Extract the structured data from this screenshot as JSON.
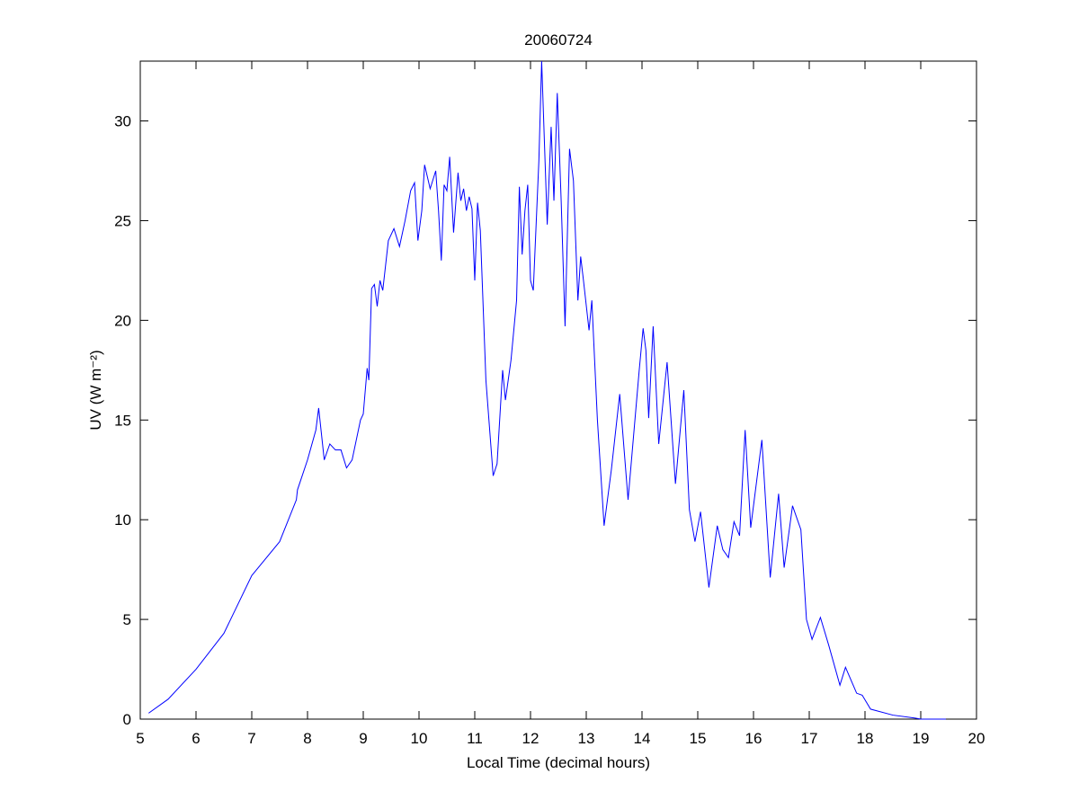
{
  "chart_data": {
    "type": "line",
    "title": "20060724",
    "xlabel": "Local Time (decimal hours)",
    "ylabel": "UV (W m⁻²)",
    "color": "#0000ff",
    "xlim": [
      5,
      20
    ],
    "xticks": [
      5,
      6,
      7,
      8,
      9,
      10,
      11,
      12,
      13,
      14,
      15,
      16,
      17,
      18,
      19,
      20
    ],
    "ylim": [
      0,
      33
    ],
    "yticks": [
      0,
      5,
      10,
      15,
      20,
      25,
      30
    ],
    "x": [
      5.15,
      5.5,
      6.0,
      6.5,
      7.0,
      7.5,
      7.8,
      7.82,
      8.0,
      8.15,
      8.2,
      8.3,
      8.4,
      8.5,
      8.6,
      8.7,
      8.8,
      8.95,
      9.0,
      9.07,
      9.1,
      9.15,
      9.2,
      9.25,
      9.3,
      9.35,
      9.45,
      9.55,
      9.65,
      9.75,
      9.85,
      9.92,
      9.98,
      10.05,
      10.1,
      10.2,
      10.3,
      10.35,
      10.4,
      10.45,
      10.5,
      10.55,
      10.62,
      10.7,
      10.75,
      10.8,
      10.85,
      10.9,
      10.95,
      11.0,
      11.05,
      11.1,
      11.2,
      11.33,
      11.4,
      11.5,
      11.55,
      11.65,
      11.75,
      11.8,
      11.85,
      11.9,
      11.95,
      12.0,
      12.05,
      12.15,
      12.2,
      12.3,
      12.37,
      12.42,
      12.48,
      12.55,
      12.62,
      12.7,
      12.77,
      12.85,
      12.9,
      12.95,
      13.05,
      13.1,
      13.2,
      13.32,
      13.45,
      13.6,
      13.75,
      13.95,
      14.02,
      14.07,
      14.12,
      14.2,
      14.3,
      14.45,
      14.6,
      14.75,
      14.85,
      14.95,
      15.05,
      15.2,
      15.35,
      15.45,
      15.55,
      15.65,
      15.75,
      15.85,
      15.95,
      16.15,
      16.3,
      16.45,
      16.55,
      16.7,
      16.85,
      16.95,
      17.05,
      17.2,
      17.35,
      17.55,
      17.65,
      17.85,
      17.95,
      18.1,
      18.5,
      18.9,
      19.0,
      19.45
    ],
    "values": [
      0.3,
      1.0,
      2.5,
      4.3,
      7.2,
      8.9,
      11.0,
      11.5,
      13.0,
      14.5,
      15.6,
      13.0,
      13.8,
      13.5,
      13.5,
      12.6,
      13.0,
      15.0,
      15.3,
      17.6,
      17.0,
      21.6,
      21.8,
      20.7,
      22.0,
      21.5,
      24.0,
      24.6,
      23.7,
      25.0,
      26.5,
      26.9,
      24.0,
      25.5,
      27.8,
      26.6,
      27.5,
      25.5,
      23.0,
      26.8,
      26.5,
      28.2,
      24.4,
      27.4,
      26.0,
      26.6,
      25.5,
      26.2,
      25.6,
      22.0,
      25.9,
      24.5,
      17.0,
      12.2,
      12.8,
      17.5,
      16.0,
      18.0,
      21.0,
      26.7,
      23.3,
      25.5,
      26.8,
      22.0,
      21.5,
      28.0,
      33.0,
      24.8,
      29.7,
      26.0,
      31.4,
      26.0,
      19.7,
      28.6,
      27.0,
      21.0,
      23.2,
      22.0,
      19.5,
      21.0,
      15.0,
      9.7,
      12.5,
      16.3,
      11.0,
      17.5,
      19.6,
      18.5,
      15.1,
      19.7,
      13.8,
      17.9,
      11.8,
      16.5,
      10.5,
      8.9,
      10.4,
      6.6,
      9.7,
      8.5,
      8.1,
      9.9,
      9.2,
      14.5,
      9.6,
      14.0,
      7.1,
      11.3,
      7.6,
      10.7,
      9.5,
      5.0,
      4.0,
      5.1,
      3.7,
      1.7,
      2.6,
      1.3,
      1.2,
      0.5,
      0.2,
      0.05,
      0.0,
      0.0
    ]
  }
}
